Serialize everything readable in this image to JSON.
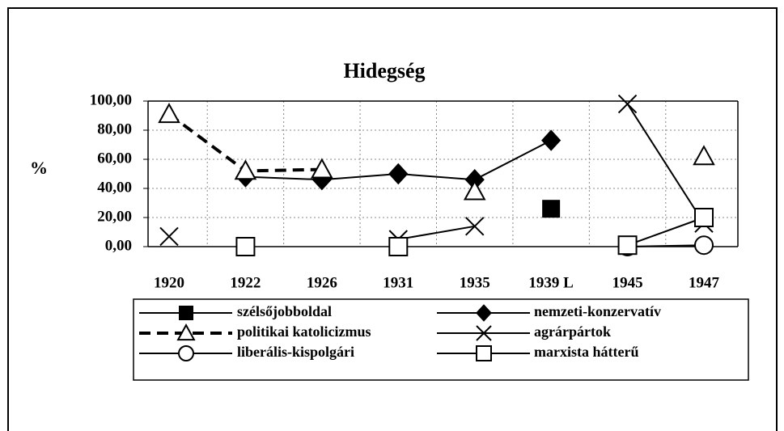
{
  "chart_data": {
    "type": "line",
    "title": "Hidegség",
    "y_label": "%",
    "categories": [
      "1920",
      "1922",
      "1926",
      "1931",
      "1935",
      "1939 L",
      "1945",
      "1947"
    ],
    "ylim": [
      0,
      100
    ],
    "yticks": [
      {
        "value": 0,
        "label": "0,00"
      },
      {
        "value": 20,
        "label": "20,00"
      },
      {
        "value": 40,
        "label": "40,00"
      },
      {
        "value": 60,
        "label": "60,00"
      },
      {
        "value": 80,
        "label": "80,00"
      },
      {
        "value": 100,
        "label": "100,00"
      }
    ],
    "grid": true,
    "series": [
      {
        "name": "szélsőjobboldal",
        "color": "#000000",
        "marker": "square-filled",
        "values": [
          null,
          null,
          null,
          null,
          null,
          26,
          null,
          null
        ]
      },
      {
        "name": "nemzeti-konzervatív",
        "color": "#000000",
        "marker": "diamond-filled",
        "values": [
          null,
          48,
          46,
          50,
          46,
          73,
          null,
          null
        ]
      },
      {
        "name": "politikai katolicizmus",
        "color": "#000000",
        "marker": "triangle-open",
        "dashed": true,
        "values": [
          91,
          52,
          53,
          null,
          38,
          null,
          null,
          62
        ]
      },
      {
        "name": "agrárpártok",
        "color": "#000000",
        "marker": "x",
        "values": [
          7,
          null,
          null,
          5,
          14,
          null,
          98,
          16
        ]
      },
      {
        "name": "liberális-kispolgári",
        "color": "#000000",
        "marker": "circle-open",
        "values": [
          null,
          null,
          null,
          null,
          null,
          null,
          0,
          1
        ]
      },
      {
        "name": "marxista hátterű",
        "color": "#000000",
        "marker": "square-open",
        "values": [
          null,
          0,
          null,
          0,
          null,
          null,
          1,
          20
        ]
      }
    ]
  }
}
